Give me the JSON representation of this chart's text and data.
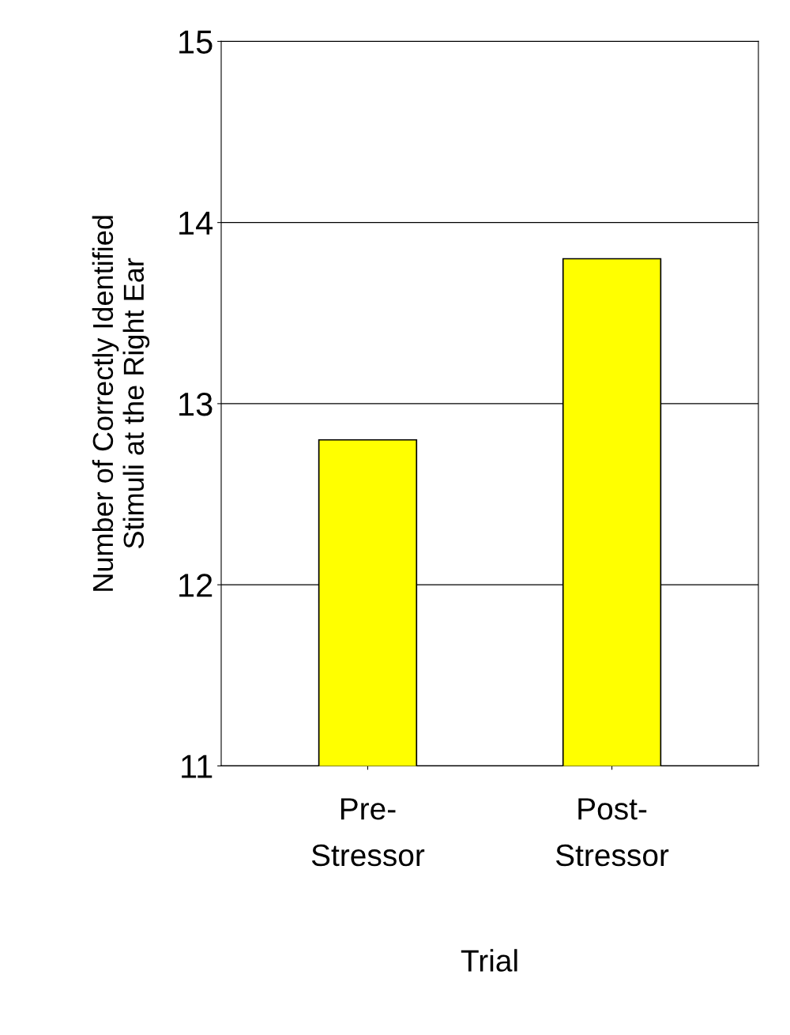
{
  "chart_data": {
    "type": "bar",
    "xlabel": "Trial",
    "ylabel": "Number of Correctly Identified\nStimuli at the Right Ear",
    "categories": [
      "Pre-\nStressor",
      "Post-\nStressor"
    ],
    "values": [
      12.8,
      13.8
    ],
    "color": "#ffff00",
    "ylim": [
      11,
      15
    ],
    "yticks": [
      11,
      12,
      13,
      14,
      15
    ],
    "grid": "y"
  }
}
